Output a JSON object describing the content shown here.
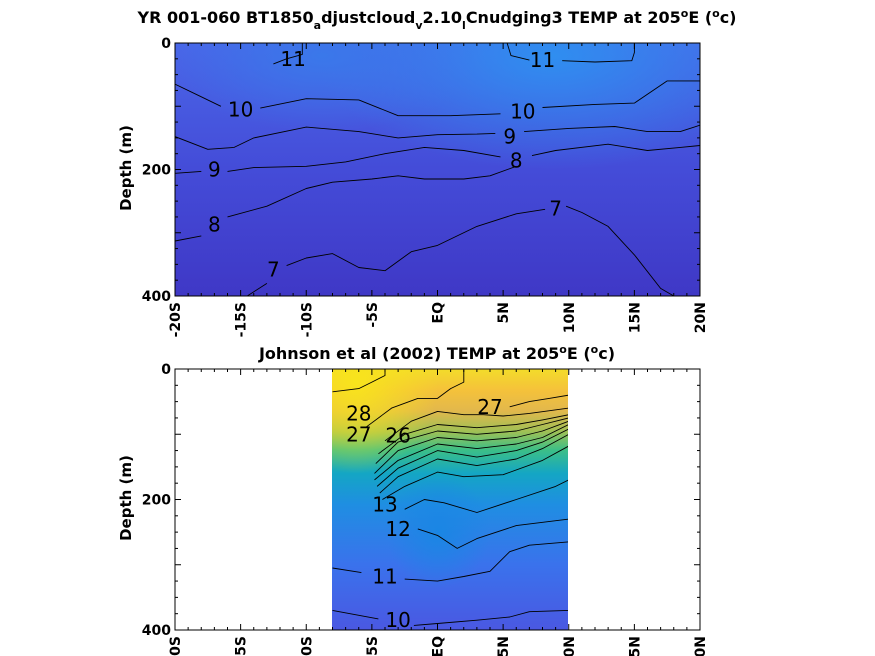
{
  "chart_data": [
    {
      "type": "contour",
      "title": "YR 001-060 BT1850_adjustcloud_v2.10_lCnudging3 TEMP at 205°E (°c)",
      "title_parts": {
        "a": "YR 001-060 BT1850",
        "sub1": "a",
        "b": "djustcloud",
        "sub2": "v",
        "c": "2.10",
        "sub3": "l",
        "d": "Cnudging3 TEMP at 205",
        "sup1": "o",
        "e": "E (",
        "sup2": "o",
        "f": "c)"
      },
      "ylabel": "Depth (m)",
      "xlim": [
        -20,
        20
      ],
      "ylim": [
        0,
        400
      ],
      "y_reversed": true,
      "xticks": [
        "-20S",
        "-15S",
        "-10S",
        "-5S",
        "EQ",
        "5N",
        "10N",
        "15N",
        "20N"
      ],
      "yticks": [
        "0",
        "200",
        "400"
      ],
      "colormap": "parula",
      "contour_labels": [
        {
          "value": "11",
          "x": -11,
          "y": 25
        },
        {
          "value": "11",
          "x": 8,
          "y": 27
        },
        {
          "value": "10",
          "x": -15,
          "y": 105
        },
        {
          "value": "10",
          "x": 6.5,
          "y": 108
        },
        {
          "value": "9",
          "x": 5.5,
          "y": 148
        },
        {
          "value": "9",
          "x": -17,
          "y": 200
        },
        {
          "value": "8",
          "x": 6,
          "y": 186
        },
        {
          "value": "8",
          "x": -17,
          "y": 287
        },
        {
          "value": "7",
          "x": 9,
          "y": 262
        },
        {
          "value": "7",
          "x": -12.5,
          "y": 358
        }
      ],
      "contour_lines": [
        {
          "value": 11,
          "points": [
            [
              -10.3,
              0
            ],
            [
              -10.3,
              18
            ],
            [
              -11.5,
              25
            ],
            [
              -12.5,
              33
            ]
          ]
        },
        {
          "value": 11,
          "points": [
            [
              5.3,
              0
            ],
            [
              5.6,
              20
            ],
            [
              7,
              27
            ]
          ]
        },
        {
          "value": 11,
          "points": [
            [
              9.5,
              28
            ],
            [
              12,
              30
            ],
            [
              14.8,
              28
            ],
            [
              15,
              15
            ],
            [
              15,
              0
            ]
          ]
        },
        {
          "value": 10,
          "points": [
            [
              -20,
              65
            ],
            [
              -18,
              85
            ],
            [
              -16.5,
              100
            ]
          ]
        },
        {
          "value": 10,
          "points": [
            [
              -13.5,
              103
            ],
            [
              -10,
              88
            ],
            [
              -6,
              90
            ],
            [
              -3,
              115
            ],
            [
              1,
              115
            ],
            [
              4.8,
              112
            ]
          ]
        },
        {
          "value": 10,
          "points": [
            [
              8,
              102
            ],
            [
              12,
              97
            ],
            [
              15,
              95
            ],
            [
              17.5,
              60
            ],
            [
              20,
              60
            ]
          ]
        },
        {
          "value": 10,
          "points": [
            [
              -20,
              65
            ],
            [
              -20,
              65
            ]
          ]
        },
        {
          "value": 9,
          "points": [
            [
              -20,
              148
            ],
            [
              -17.5,
              168
            ],
            [
              -15.5,
              165
            ],
            [
              -14,
              150
            ],
            [
              -10,
              133
            ],
            [
              -6,
              140
            ],
            [
              -3,
              150
            ],
            [
              0,
              145
            ],
            [
              3,
              144
            ],
            [
              4.4,
              143
            ]
          ]
        },
        {
          "value": 9,
          "points": [
            [
              6.6,
              140
            ],
            [
              10,
              135
            ],
            [
              13.5,
              132
            ],
            [
              16,
              140
            ],
            [
              18.5,
              140
            ],
            [
              20,
              130
            ]
          ]
        },
        {
          "value": 9,
          "points": [
            [
              -18,
              203
            ],
            [
              -20,
              206
            ]
          ]
        },
        {
          "value": 9,
          "points": [
            [
              -16,
              203
            ],
            [
              -14,
              197
            ],
            [
              -10,
              195
            ],
            [
              -7,
              188
            ],
            [
              -4,
              175
            ],
            [
              -1,
              165
            ],
            [
              2,
              170
            ],
            [
              4.8,
              180
            ]
          ]
        },
        {
          "value": 8,
          "points": [
            [
              7.2,
              178
            ],
            [
              9,
              170
            ],
            [
              13,
              160
            ],
            [
              16,
              170
            ],
            [
              18.5,
              165
            ],
            [
              20,
              162
            ]
          ]
        },
        {
          "value": 8,
          "points": [
            [
              -20,
              313
            ],
            [
              -18,
              305
            ]
          ]
        },
        {
          "value": 8,
          "points": [
            [
              -16,
              275
            ],
            [
              -13,
              258
            ],
            [
              -10,
              230
            ],
            [
              -8,
              220
            ],
            [
              -5,
              215
            ],
            [
              -3,
              210
            ],
            [
              -1,
              215
            ],
            [
              2,
              215
            ],
            [
              4,
              210
            ],
            [
              6,
              195
            ]
          ]
        },
        {
          "value": 7,
          "points": [
            [
              -14.5,
              400
            ],
            [
              -13,
              380
            ]
          ]
        },
        {
          "value": 7,
          "points": [
            [
              -11.5,
              352
            ],
            [
              -10,
              340
            ],
            [
              -8,
              333
            ],
            [
              -6,
              355
            ],
            [
              -4,
              360
            ],
            [
              -2,
              330
            ],
            [
              0,
              320
            ],
            [
              3,
              290
            ],
            [
              6,
              270
            ],
            [
              8.2,
              263
            ]
          ]
        },
        {
          "value": 7,
          "points": [
            [
              9.8,
              258
            ],
            [
              11,
              268
            ],
            [
              13,
              290
            ],
            [
              15,
              335
            ],
            [
              17,
              388
            ],
            [
              18,
              400
            ]
          ]
        },
        {
          "value": 7,
          "points": [
            [
              -20,
              400
            ],
            [
              -20,
              400
            ]
          ]
        }
      ]
    },
    {
      "type": "contour",
      "title": "Johnson et al (2002) TEMP at 205°E (°c)",
      "title_parts": {
        "a": "Johnson et al (2002) TEMP at 205",
        "sup1": "o",
        "b": "E (",
        "sup2": "o",
        "c": "c)"
      },
      "ylabel": "Depth (m)",
      "xlim": [
        -20,
        20
      ],
      "ylim": [
        0,
        400
      ],
      "y_reversed": true,
      "data_xlim": [
        -8,
        10
      ],
      "xticks": [
        "-20S",
        "-15S",
        "-10S",
        "-5S",
        "EQ",
        "5N",
        "10N",
        "15N",
        "20N"
      ],
      "yticks": [
        "0",
        "200",
        "400"
      ],
      "colormap": "parula",
      "contour_labels": [
        {
          "value": "28",
          "x": -6,
          "y": 68
        },
        {
          "value": "27",
          "x": -6,
          "y": 100
        },
        {
          "value": "26",
          "x": -3,
          "y": 102
        },
        {
          "value": "27",
          "x": 4,
          "y": 58
        },
        {
          "value": "13",
          "x": -4,
          "y": 208
        },
        {
          "value": "12",
          "x": -3,
          "y": 245
        },
        {
          "value": "11",
          "x": -4,
          "y": 318
        },
        {
          "value": "10",
          "x": -3,
          "y": 385
        }
      ],
      "contour_lines": [
        {
          "value": 28,
          "points": [
            [
              -8,
              35
            ],
            [
              -6,
              30
            ],
            [
              -5,
              20
            ],
            [
              -4,
              10
            ],
            [
              -4,
              0
            ]
          ]
        },
        {
          "value": 27,
          "points": [
            [
              -5.5,
              90
            ],
            [
              -3.5,
              60
            ],
            [
              -1.5,
              45
            ],
            [
              0,
              45
            ],
            [
              1,
              30
            ],
            [
              2,
              20
            ],
            [
              2,
              0
            ]
          ]
        },
        {
          "value": 27,
          "points": [
            [
              5.5,
              58
            ],
            [
              7,
              50
            ],
            [
              8.5,
              45
            ],
            [
              10,
              40
            ]
          ]
        },
        {
          "value": 26,
          "points": [
            [
              -4,
              110
            ],
            [
              -2,
              80
            ],
            [
              0,
              65
            ],
            [
              2,
              70
            ],
            [
              3.5,
              70
            ],
            [
              5,
              72
            ],
            [
              7,
              68
            ],
            [
              10,
              60
            ]
          ]
        },
        {
          "value": 25,
          "points": [
            [
              -4.5,
              130
            ],
            [
              -2.5,
              100
            ],
            [
              0,
              85
            ],
            [
              3,
              90
            ],
            [
              6,
              85
            ],
            [
              8,
              78
            ],
            [
              10,
              70
            ]
          ]
        },
        {
          "value": 24,
          "points": [
            [
              -4.7,
              145
            ],
            [
              -3,
              112
            ],
            [
              0,
              95
            ],
            [
              3,
              100
            ],
            [
              6,
              95
            ],
            [
              8,
              85
            ],
            [
              10,
              75
            ]
          ]
        },
        {
          "value": 22,
          "points": [
            [
              -4.8,
              160
            ],
            [
              -3,
              125
            ],
            [
              0,
              105
            ],
            [
              3,
              110
            ],
            [
              6,
              105
            ],
            [
              8,
              95
            ],
            [
              10,
              80
            ]
          ]
        },
        {
          "value": 20,
          "points": [
            [
              -4.8,
              170
            ],
            [
              -3,
              140
            ],
            [
              0,
              115
            ],
            [
              3,
              122
            ],
            [
              6,
              115
            ],
            [
              8,
              105
            ],
            [
              10,
              85
            ]
          ]
        },
        {
          "value": 18,
          "points": [
            [
              -4.6,
              180
            ],
            [
              -3,
              152
            ],
            [
              0,
              125
            ],
            [
              3,
              135
            ],
            [
              6,
              125
            ],
            [
              8,
              112
            ],
            [
              10,
              92
            ]
          ]
        },
        {
          "value": 16,
          "points": [
            [
              -4.4,
              190
            ],
            [
              -3,
              165
            ],
            [
              0,
              138
            ],
            [
              3,
              148
            ],
            [
              6,
              138
            ],
            [
              8,
              122
            ],
            [
              10,
              100
            ]
          ]
        },
        {
          "value": 14,
          "points": [
            [
              -4.2,
              200
            ],
            [
              -2.5,
              180
            ],
            [
              0,
              158
            ],
            [
              2,
              165
            ],
            [
              5,
              162
            ],
            [
              8,
              140
            ],
            [
              10,
              118
            ]
          ]
        },
        {
          "value": 13,
          "points": [
            [
              -2.5,
              215
            ],
            [
              -1,
              200
            ],
            [
              0.5,
              205
            ],
            [
              3,
              220
            ],
            [
              6,
              200
            ],
            [
              9,
              180
            ],
            [
              10,
              170
            ]
          ]
        },
        {
          "value": 12,
          "points": [
            [
              -1.5,
              245
            ],
            [
              0,
              255
            ],
            [
              1.5,
              275
            ],
            [
              3,
              260
            ],
            [
              6,
              240
            ],
            [
              10,
              230
            ]
          ]
        },
        {
          "value": 11,
          "points": [
            [
              -8,
              305
            ],
            [
              -5.8,
              312
            ]
          ]
        },
        {
          "value": 11,
          "points": [
            [
              -2.5,
              322
            ],
            [
              0,
              325
            ],
            [
              2,
              318
            ],
            [
              4,
              310
            ],
            [
              5.5,
              280
            ],
            [
              7,
              270
            ],
            [
              10,
              265
            ]
          ]
        },
        {
          "value": 10,
          "points": [
            [
              -8,
              370
            ],
            [
              -4.5,
              383
            ]
          ]
        },
        {
          "value": 10,
          "points": [
            [
              -1.8,
              393
            ],
            [
              0,
              390
            ],
            [
              3,
              385
            ],
            [
              5.5,
              380
            ],
            [
              7,
              372
            ],
            [
              10,
              370
            ]
          ]
        }
      ]
    }
  ]
}
